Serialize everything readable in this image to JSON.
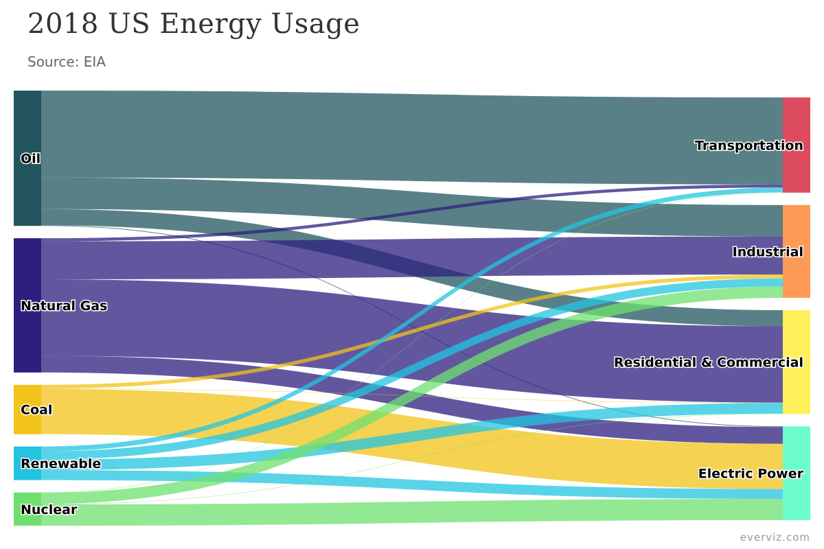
{
  "chart_data": {
    "type": "sankey",
    "title": "2018 US Energy Usage",
    "subtitle": "Source: EIA",
    "credit": "everviz.com",
    "sources": [
      {
        "name": "Oil",
        "color": "#22555e"
      },
      {
        "name": "Natural Gas",
        "color": "#2e1f7f"
      },
      {
        "name": "Coal",
        "color": "#f2c318"
      },
      {
        "name": "Renewable",
        "color": "#22c4e0"
      },
      {
        "name": "Nuclear",
        "color": "#6fe06f"
      }
    ],
    "targets": [
      {
        "name": "Transportation",
        "color": "#dd4b5e"
      },
      {
        "name": "Industrial",
        "color": "#fd9b56"
      },
      {
        "name": "Residential & Commercial",
        "color": "#fff05a"
      },
      {
        "name": "Electric Power",
        "color": "#6dfccc"
      }
    ],
    "links": [
      {
        "from": "Oil",
        "to": "Transportation",
        "value": 25.4
      },
      {
        "from": "Oil",
        "to": "Industrial",
        "value": 9.2
      },
      {
        "from": "Oil",
        "to": "Residential & Commercial",
        "value": 4.7
      },
      {
        "from": "Oil",
        "to": "Electric Power",
        "value": 0.2
      },
      {
        "from": "Natural Gas",
        "to": "Transportation",
        "value": 0.9
      },
      {
        "from": "Natural Gas",
        "to": "Industrial",
        "value": 11.1
      },
      {
        "from": "Natural Gas",
        "to": "Residential & Commercial",
        "value": 22.3
      },
      {
        "from": "Natural Gas",
        "to": "Electric Power",
        "value": 4.9
      },
      {
        "from": "Coal",
        "to": "Industrial",
        "value": 1.1
      },
      {
        "from": "Coal",
        "to": "Residential & Commercial",
        "value": 0.1
      },
      {
        "from": "Coal",
        "to": "Electric Power",
        "value": 13.2
      },
      {
        "from": "Renewable",
        "to": "Transportation",
        "value": 1.4
      },
      {
        "from": "Renewable",
        "to": "Industrial",
        "value": 2.4
      },
      {
        "from": "Renewable",
        "to": "Residential & Commercial",
        "value": 3.1
      },
      {
        "from": "Renewable",
        "to": "Electric Power",
        "value": 2.9
      },
      {
        "from": "Nuclear",
        "to": "Transportation",
        "value": 0.1
      },
      {
        "from": "Nuclear",
        "to": "Industrial",
        "value": 3.3
      },
      {
        "from": "Nuclear",
        "to": "Residential & Commercial",
        "value": 0.1
      },
      {
        "from": "Nuclear",
        "to": "Electric Power",
        "value": 6.2
      }
    ]
  }
}
